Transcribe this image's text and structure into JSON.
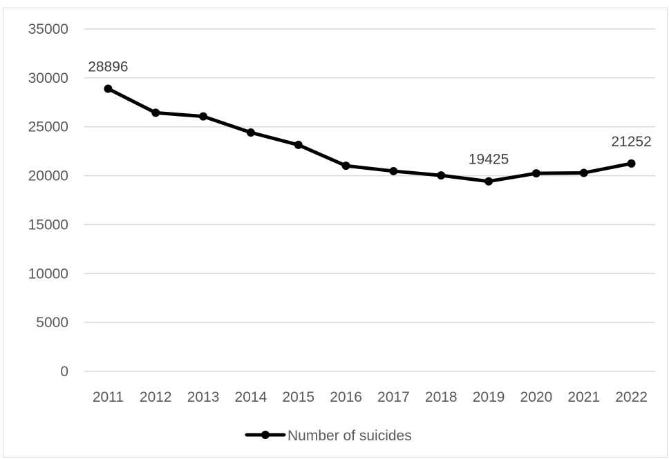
{
  "chart_data": {
    "type": "line",
    "title": "",
    "xlabel": "",
    "ylabel": "",
    "categories": [
      "2011",
      "2012",
      "2013",
      "2014",
      "2015",
      "2016",
      "2017",
      "2018",
      "2019",
      "2020",
      "2021",
      "2022"
    ],
    "series": [
      {
        "name": "Number of suicides",
        "color": "#000000",
        "marker": "circle",
        "values": [
          28896,
          26433,
          26063,
          24417,
          23152,
          21017,
          20468,
          20031,
          19425,
          20243,
          20291,
          21252
        ]
      }
    ],
    "data_labels": [
      {
        "category": "2011",
        "text": "28896"
      },
      {
        "category": "2019",
        "text": "19425"
      },
      {
        "category": "2022",
        "text": "21252"
      }
    ],
    "ylim": [
      0,
      35000
    ],
    "yticks": [
      "0",
      "5000",
      "10000",
      "15000",
      "20000",
      "25000",
      "30000",
      "35000"
    ],
    "grid": "horizontal",
    "legend_position": "bottom",
    "colors": {
      "gridline": "#d9d9d9",
      "tick_text": "#595959",
      "line": "#000000"
    }
  }
}
